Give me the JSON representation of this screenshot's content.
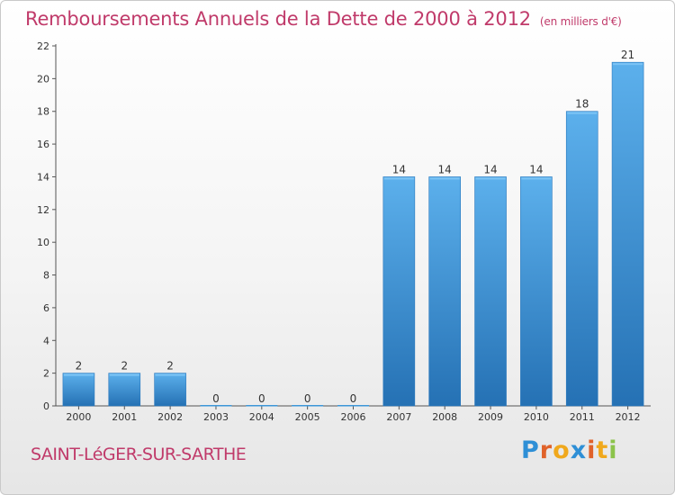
{
  "title": "Remboursements Annuels de la Dette de 2000 à 2012",
  "subtitle": "(en milliers d'€)",
  "commune": "SAINT-LéGER-SUR-SARTHE",
  "logo": {
    "letters": [
      "P",
      "r",
      "o",
      "x",
      "i",
      "t",
      "i"
    ],
    "colors": [
      "#2e8fd6",
      "#e0622a",
      "#f0a81c",
      "#2e8fd6",
      "#e0622a",
      "#f0a81c",
      "#8bc34a"
    ]
  },
  "colors": {
    "bar": "#3d97d8",
    "bar_light": "#5cb0ec",
    "bar_dark": "#2571b4",
    "title": "#c03a6a"
  },
  "chart_data": {
    "type": "bar",
    "title": "Remboursements Annuels de la Dette de 2000 à 2012",
    "ylabel": "en milliers d'€",
    "xlabel": "",
    "categories": [
      "2000",
      "2001",
      "2002",
      "2003",
      "2004",
      "2005",
      "2006",
      "2007",
      "2008",
      "2009",
      "2010",
      "2011",
      "2012"
    ],
    "values": [
      2,
      2,
      2,
      0,
      0,
      0,
      0,
      14,
      14,
      14,
      14,
      18,
      21
    ],
    "ylim": [
      0,
      22
    ],
    "yticks": [
      0,
      2,
      4,
      6,
      8,
      10,
      12,
      14,
      16,
      18,
      20,
      22
    ],
    "grid": false
  }
}
